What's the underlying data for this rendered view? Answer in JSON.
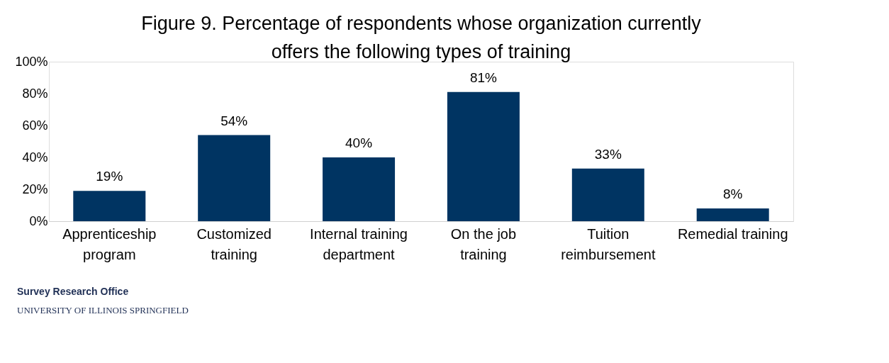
{
  "chart_data": {
    "type": "bar",
    "title": "Figure 9. Percentage of respondents whose organization currently offers the following types of training",
    "categories": [
      "Apprenticeship program",
      "Customized training",
      "Internal training department",
      "On the job training",
      "Tuition reimbursement",
      "Remedial training"
    ],
    "values": [
      19,
      54,
      40,
      81,
      33,
      8
    ],
    "value_labels": [
      "19%",
      "54%",
      "40%",
      "81%",
      "33%",
      "8%"
    ],
    "color": "#003462",
    "ylim": [
      0,
      100
    ],
    "yticks": [
      {
        "value": 0,
        "label": "0%"
      },
      {
        "value": 20,
        "label": "20%"
      },
      {
        "value": 40,
        "label": "40%"
      },
      {
        "value": 60,
        "label": "60%"
      },
      {
        "value": 80,
        "label": "80%"
      },
      {
        "value": 100,
        "label": "100%"
      }
    ],
    "grid": false,
    "annotations": [
      "Survey Research Office",
      "UNIVERSITY OF ILLINOIS SPRINGFIELD"
    ]
  }
}
